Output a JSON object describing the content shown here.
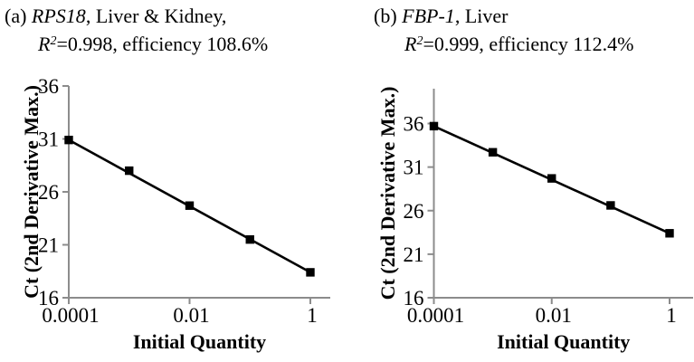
{
  "figure": {
    "background": "#ffffff",
    "text_color": "#000000",
    "axis_color": "#8c8c8c",
    "line_color": "#000000",
    "marker_color": "#000000"
  },
  "chart_data": [
    {
      "type": "line",
      "panel": "a",
      "title_prefix": "(a) ",
      "title_gene": "RPS18",
      "title_suffix": ", Liver & Kidney,",
      "stat_r_symbol": "R",
      "stat_r_exponent": "2",
      "stat_rest": "=0.998, efficiency 108.6%",
      "r_squared": 0.998,
      "efficiency_percent": 108.6,
      "xlabel": "Initial Quantity",
      "ylabel": "Ct (2nd Derivative Max.)",
      "xscale": "log",
      "x": [
        0.0001,
        0.001,
        0.01,
        0.1,
        1
      ],
      "y": [
        30.9,
        28.0,
        24.7,
        21.5,
        18.4
      ],
      "xticks": [
        {
          "value": 0.0001,
          "label": "0.0001"
        },
        {
          "value": 0.01,
          "label": "0.01"
        },
        {
          "value": 1,
          "label": "1"
        }
      ],
      "yticks": [
        16,
        21,
        26,
        31,
        36
      ],
      "ylim": [
        16,
        36
      ],
      "legend": "none",
      "grid": "off",
      "marker": "square"
    },
    {
      "type": "line",
      "panel": "b",
      "title_prefix": "(b) ",
      "title_gene": "FBP-1",
      "title_suffix": ", Liver",
      "stat_r_symbol": "R",
      "stat_r_exponent": "2",
      "stat_rest": "=0.999, efficiency 112.4%",
      "r_squared": 0.999,
      "efficiency_percent": 112.4,
      "xlabel": "Initial Quantity",
      "ylabel": "Ct (2nd Derivative Max.)",
      "xscale": "log",
      "x": [
        0.0001,
        0.001,
        0.01,
        0.1,
        1
      ],
      "y": [
        35.7,
        32.7,
        29.7,
        26.6,
        23.4
      ],
      "xticks": [
        {
          "value": 0.0001,
          "label": "0.0001"
        },
        {
          "value": 0.01,
          "label": "0.01"
        },
        {
          "value": 1,
          "label": "1"
        }
      ],
      "yticks": [
        16,
        21,
        26,
        31,
        36
      ],
      "ylim": [
        16,
        40
      ],
      "legend": "none",
      "grid": "off",
      "marker": "square"
    }
  ]
}
